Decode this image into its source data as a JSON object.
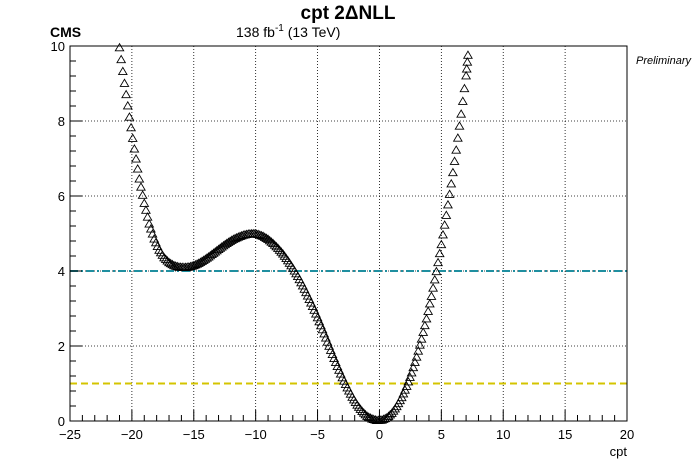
{
  "header": {
    "title": "cpt 2ΔNLL",
    "experiment": "CMS",
    "luminosity_value": "138 fb",
    "luminosity_exponent": "-1",
    "energy": " (13 TeV)",
    "status": "Preliminary"
  },
  "chart_data": {
    "type": "scatter",
    "title": "cpt 2ΔNLL",
    "xlabel": "cpt",
    "ylabel": "",
    "xlim": [
      -25,
      20
    ],
    "ylim": [
      0,
      10
    ],
    "x_ticks": [
      -25,
      -20,
      -15,
      -10,
      -5,
      0,
      5,
      10,
      15,
      20
    ],
    "x_tick_labels": [
      "−25",
      "−20",
      "−15",
      "−10",
      "−5",
      "0",
      "5",
      "10",
      "15",
      "20"
    ],
    "y_ticks": [
      0,
      2,
      4,
      6,
      8,
      10
    ],
    "y_tick_labels": [
      "0",
      "2",
      "4",
      "6",
      "8",
      "10"
    ],
    "grid": true,
    "marker": "open-triangle",
    "reference_lines": [
      {
        "y": 4,
        "color": "#1f8fa0",
        "style": "dash-dot"
      },
      {
        "y": 1,
        "color": "#d4c400",
        "style": "dashed"
      }
    ],
    "series": [
      {
        "values": [
          [
            -21.0,
            9.95
          ],
          [
            -20.6,
            9.0
          ],
          [
            -20.2,
            8.1
          ],
          [
            -19.8,
            7.25
          ],
          [
            -19.4,
            6.45
          ],
          [
            -19.0,
            5.8
          ],
          [
            -18.6,
            5.25
          ],
          [
            -18.2,
            4.85
          ],
          [
            -17.8,
            4.55
          ],
          [
            -17.4,
            4.35
          ],
          [
            -17.0,
            4.22
          ],
          [
            -16.6,
            4.14
          ],
          [
            -16.2,
            4.1
          ],
          [
            -15.8,
            4.09
          ],
          [
            -15.4,
            4.1
          ],
          [
            -15.0,
            4.14
          ],
          [
            -14.6,
            4.2
          ],
          [
            -14.2,
            4.28
          ],
          [
            -13.8,
            4.37
          ],
          [
            -13.4,
            4.47
          ],
          [
            -13.0,
            4.57
          ],
          [
            -12.6,
            4.67
          ],
          [
            -12.2,
            4.76
          ],
          [
            -11.8,
            4.84
          ],
          [
            -11.4,
            4.9
          ],
          [
            -11.0,
            4.95
          ],
          [
            -10.6,
            4.98
          ],
          [
            -10.2,
            4.99
          ],
          [
            -9.8,
            4.97
          ],
          [
            -9.4,
            4.92
          ],
          [
            -9.0,
            4.84
          ],
          [
            -8.6,
            4.73
          ],
          [
            -8.2,
            4.6
          ],
          [
            -7.8,
            4.45
          ],
          [
            -7.4,
            4.27
          ],
          [
            -7.0,
            4.07
          ],
          [
            -6.6,
            3.85
          ],
          [
            -6.2,
            3.6
          ],
          [
            -5.8,
            3.33
          ],
          [
            -5.4,
            3.05
          ],
          [
            -5.0,
            2.75
          ],
          [
            -4.6,
            2.43
          ],
          [
            -4.2,
            2.1
          ],
          [
            -3.8,
            1.77
          ],
          [
            -3.4,
            1.45
          ],
          [
            -3.0,
            1.15
          ],
          [
            -2.6,
            0.88
          ],
          [
            -2.2,
            0.63
          ],
          [
            -1.8,
            0.42
          ],
          [
            -1.4,
            0.25
          ],
          [
            -1.0,
            0.12
          ],
          [
            -0.6,
            0.05
          ],
          [
            -0.2,
            0.01
          ],
          [
            0.2,
            0.02
          ],
          [
            0.6,
            0.08
          ],
          [
            1.0,
            0.2
          ],
          [
            1.4,
            0.38
          ],
          [
            1.8,
            0.62
          ],
          [
            2.2,
            0.92
          ],
          [
            2.6,
            1.28
          ],
          [
            3.0,
            1.7
          ],
          [
            3.4,
            2.18
          ],
          [
            3.8,
            2.72
          ],
          [
            4.2,
            3.32
          ],
          [
            4.6,
            3.98
          ],
          [
            5.0,
            4.7
          ],
          [
            5.4,
            5.48
          ],
          [
            5.8,
            6.32
          ],
          [
            6.2,
            7.22
          ],
          [
            6.6,
            8.18
          ],
          [
            7.0,
            9.2
          ],
          [
            7.15,
            9.75
          ]
        ]
      }
    ]
  }
}
